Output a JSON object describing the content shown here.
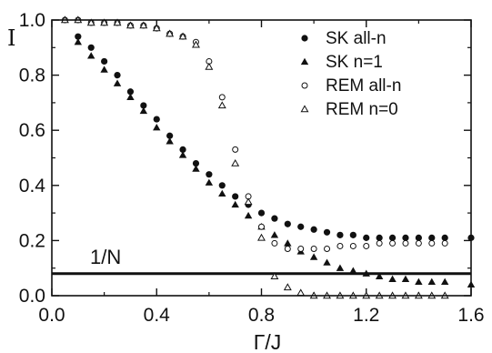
{
  "chart_data": {
    "type": "scatter",
    "ylabel": "I",
    "xlabel": "Γ/J",
    "xlim": [
      0,
      1.6
    ],
    "ylim": [
      0,
      1.0
    ],
    "xticks": [
      "0.0",
      "0.4",
      "0.8",
      "1.2",
      "1.6"
    ],
    "yticks": [
      "0.0",
      "0.2",
      "0.4",
      "0.6",
      "0.8",
      "1.0"
    ],
    "legend_position": "top-right",
    "grid": false,
    "series": [
      {
        "name": "SK all-n",
        "marker": "filled-circle",
        "points": [
          [
            0.1,
            0.94
          ],
          [
            0.15,
            0.9
          ],
          [
            0.2,
            0.85
          ],
          [
            0.25,
            0.8
          ],
          [
            0.3,
            0.74
          ],
          [
            0.35,
            0.69
          ],
          [
            0.4,
            0.64
          ],
          [
            0.45,
            0.58
          ],
          [
            0.5,
            0.53
          ],
          [
            0.55,
            0.48
          ],
          [
            0.6,
            0.44
          ],
          [
            0.65,
            0.4
          ],
          [
            0.7,
            0.36
          ],
          [
            0.75,
            0.33
          ],
          [
            0.8,
            0.3
          ],
          [
            0.85,
            0.28
          ],
          [
            0.9,
            0.26
          ],
          [
            0.95,
            0.25
          ],
          [
            1.0,
            0.24
          ],
          [
            1.05,
            0.23
          ],
          [
            1.1,
            0.22
          ],
          [
            1.15,
            0.22
          ],
          [
            1.2,
            0.21
          ],
          [
            1.25,
            0.21
          ],
          [
            1.3,
            0.21
          ],
          [
            1.35,
            0.21
          ],
          [
            1.4,
            0.21
          ],
          [
            1.45,
            0.21
          ],
          [
            1.5,
            0.21
          ],
          [
            1.6,
            0.21
          ]
        ]
      },
      {
        "name": "SK n=1",
        "marker": "filled-triangle",
        "points": [
          [
            0.1,
            0.92
          ],
          [
            0.15,
            0.87
          ],
          [
            0.2,
            0.82
          ],
          [
            0.25,
            0.77
          ],
          [
            0.3,
            0.72
          ],
          [
            0.35,
            0.67
          ],
          [
            0.4,
            0.61
          ],
          [
            0.45,
            0.56
          ],
          [
            0.5,
            0.51
          ],
          [
            0.55,
            0.46
          ],
          [
            0.6,
            0.41
          ],
          [
            0.65,
            0.37
          ],
          [
            0.7,
            0.33
          ],
          [
            0.75,
            0.29
          ],
          [
            0.8,
            0.25
          ],
          [
            0.85,
            0.22
          ],
          [
            0.9,
            0.19
          ],
          [
            0.95,
            0.16
          ],
          [
            1.0,
            0.14
          ],
          [
            1.05,
            0.12
          ],
          [
            1.1,
            0.1
          ],
          [
            1.15,
            0.09
          ],
          [
            1.2,
            0.08
          ],
          [
            1.25,
            0.07
          ],
          [
            1.3,
            0.06
          ],
          [
            1.35,
            0.06
          ],
          [
            1.4,
            0.05
          ],
          [
            1.45,
            0.05
          ],
          [
            1.5,
            0.05
          ],
          [
            1.6,
            0.04
          ]
        ]
      },
      {
        "name": "REM all-n",
        "marker": "open-circle",
        "points": [
          [
            0.05,
            1.0
          ],
          [
            0.1,
            1.0
          ],
          [
            0.15,
            0.99
          ],
          [
            0.2,
            0.99
          ],
          [
            0.25,
            0.99
          ],
          [
            0.3,
            0.98
          ],
          [
            0.35,
            0.98
          ],
          [
            0.4,
            0.97
          ],
          [
            0.45,
            0.95
          ],
          [
            0.5,
            0.94
          ],
          [
            0.55,
            0.92
          ],
          [
            0.6,
            0.85
          ],
          [
            0.65,
            0.72
          ],
          [
            0.7,
            0.53
          ],
          [
            0.75,
            0.36
          ],
          [
            0.8,
            0.25
          ],
          [
            0.85,
            0.19
          ],
          [
            0.9,
            0.17
          ],
          [
            0.95,
            0.17
          ],
          [
            1.0,
            0.17
          ],
          [
            1.05,
            0.17
          ],
          [
            1.1,
            0.18
          ],
          [
            1.15,
            0.18
          ],
          [
            1.2,
            0.18
          ],
          [
            1.25,
            0.19
          ],
          [
            1.3,
            0.19
          ],
          [
            1.35,
            0.19
          ],
          [
            1.4,
            0.19
          ],
          [
            1.45,
            0.19
          ],
          [
            1.5,
            0.19
          ]
        ]
      },
      {
        "name": "REM n=0",
        "marker": "open-triangle",
        "points": [
          [
            0.05,
            1.0
          ],
          [
            0.1,
            1.0
          ],
          [
            0.15,
            0.99
          ],
          [
            0.2,
            0.99
          ],
          [
            0.25,
            0.99
          ],
          [
            0.3,
            0.98
          ],
          [
            0.35,
            0.98
          ],
          [
            0.4,
            0.97
          ],
          [
            0.45,
            0.95
          ],
          [
            0.5,
            0.94
          ],
          [
            0.55,
            0.91
          ],
          [
            0.6,
            0.83
          ],
          [
            0.65,
            0.69
          ],
          [
            0.7,
            0.48
          ],
          [
            0.75,
            0.34
          ],
          [
            0.8,
            0.21
          ],
          [
            0.85,
            0.07
          ],
          [
            0.9,
            0.03
          ],
          [
            0.95,
            0.01
          ],
          [
            1.0,
            0.0
          ],
          [
            1.05,
            0.0
          ],
          [
            1.1,
            0.0
          ],
          [
            1.15,
            0.0
          ],
          [
            1.2,
            0.0
          ],
          [
            1.25,
            0.0
          ],
          [
            1.3,
            0.0
          ],
          [
            1.35,
            0.0
          ],
          [
            1.4,
            0.0
          ],
          [
            1.45,
            0.0
          ],
          [
            1.5,
            0.0
          ]
        ]
      }
    ],
    "reference_line": {
      "label": "1/N",
      "y": 0.08
    }
  }
}
